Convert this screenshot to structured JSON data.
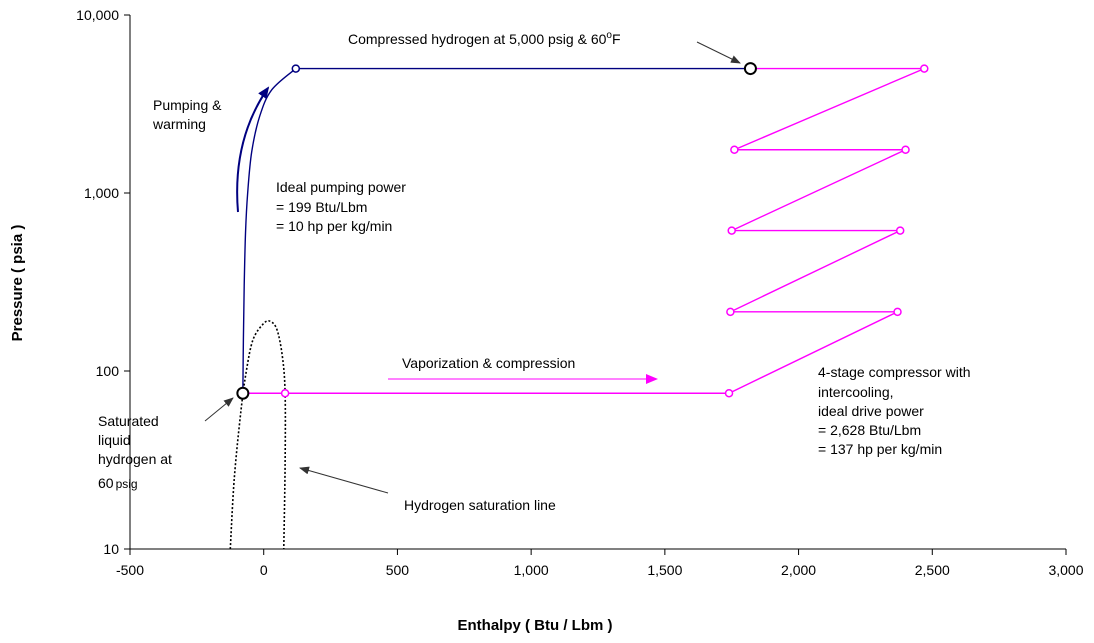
{
  "chart_data": {
    "type": "line",
    "xlabel": "Enthalpy  ( Btu / Lbm )",
    "ylabel": "Pressure  ( psia )",
    "xlim": [
      -500,
      3000
    ],
    "ylim": [
      10,
      10000
    ],
    "yscale": "log",
    "grid": false,
    "x_ticks": [
      -500,
      0,
      500,
      1000,
      1500,
      2000,
      2500,
      3000
    ],
    "x_tick_labels": [
      "-500",
      "0",
      "500",
      "1,000",
      "1,500",
      "2,000",
      "2,500",
      "3,000"
    ],
    "y_ticks": [
      10,
      100,
      1000,
      10000
    ],
    "y_tick_labels": [
      "10",
      "100",
      "1,000",
      "10,000"
    ],
    "colors": {
      "pump": "#000080",
      "compressor": "#ff00ff",
      "saturation": "#000000"
    },
    "series": [
      {
        "id": "pumping",
        "style": "solid",
        "color": "#000080",
        "points": [
          [
            -78,
            75
          ],
          [
            -76,
            150
          ],
          [
            -73,
            300
          ],
          [
            -68,
            600
          ],
          [
            -60,
            1000
          ],
          [
            -45,
            1700
          ],
          [
            -15,
            2700
          ],
          [
            30,
            3800
          ],
          [
            120,
            5000
          ],
          [
            1820,
            5000
          ]
        ]
      },
      {
        "id": "compression",
        "style": "solid",
        "color": "#ff00ff",
        "points": [
          [
            -78,
            75
          ],
          [
            1740,
            75
          ],
          [
            2370,
            215
          ],
          [
            1745,
            215
          ],
          [
            2380,
            615
          ],
          [
            1750,
            615
          ],
          [
            2400,
            1750
          ],
          [
            1760,
            1750
          ],
          [
            2470,
            5000
          ],
          [
            1820,
            5000
          ]
        ]
      },
      {
        "id": "saturation",
        "style": "dotted",
        "color": "#000000",
        "points": [
          [
            -125,
            10
          ],
          [
            -110,
            25
          ],
          [
            -85,
            60
          ],
          [
            -65,
            100
          ],
          [
            -40,
            150
          ],
          [
            0,
            185
          ],
          [
            25,
            190
          ],
          [
            50,
            170
          ],
          [
            70,
            120
          ],
          [
            80,
            75
          ],
          [
            80,
            30
          ],
          [
            75,
            10
          ]
        ]
      }
    ],
    "markers": [
      {
        "id": "sat-liquid-point",
        "x": -78,
        "y": 75,
        "color": "#000000",
        "size": "large"
      },
      {
        "id": "vapor-point",
        "x": 80,
        "y": 75,
        "color": "#ff00ff",
        "size": "small"
      },
      {
        "id": "pump-top-point",
        "x": 120,
        "y": 5000,
        "color": "#000080",
        "size": "small"
      },
      {
        "id": "compressed-h2-point",
        "x": 1820,
        "y": 5000,
        "color": "#000000",
        "size": "large"
      },
      {
        "id": "stage1-in",
        "x": 1740,
        "y": 75,
        "color": "#ff00ff",
        "size": "small"
      },
      {
        "id": "stage1-out",
        "x": 2370,
        "y": 215,
        "color": "#ff00ff",
        "size": "small"
      },
      {
        "id": "stage2-in",
        "x": 1745,
        "y": 215,
        "color": "#ff00ff",
        "size": "small"
      },
      {
        "id": "stage2-out",
        "x": 2380,
        "y": 615,
        "color": "#ff00ff",
        "size": "small"
      },
      {
        "id": "stage3-in",
        "x": 1750,
        "y": 615,
        "color": "#ff00ff",
        "size": "small"
      },
      {
        "id": "stage3-out",
        "x": 2400,
        "y": 1750,
        "color": "#ff00ff",
        "size": "small"
      },
      {
        "id": "stage4-in",
        "x": 1760,
        "y": 1750,
        "color": "#ff00ff",
        "size": "small"
      },
      {
        "id": "stage4-out",
        "x": 2470,
        "y": 5000,
        "color": "#ff00ff",
        "size": "small"
      }
    ],
    "annotations": {
      "compressed_h2": {
        "main": "Compressed hydrogen at 5,000 psig & 60",
        "sup": "o",
        "unit": "F"
      },
      "pumping": [
        "Pumping &",
        "warming"
      ],
      "pump_power": [
        "Ideal pumping power",
        "= 199 Btu/Lbm",
        "= 10 hp per kg/min"
      ],
      "vaporization": "Vaporization & compression",
      "compressor": [
        "4-stage compressor with",
        "intercooling,",
        "ideal drive power",
        "= 2,628 Btu/Lbm",
        "= 137 hp per kg/min"
      ],
      "sat_liquid": [
        "Saturated",
        "liquid",
        "hydrogen at"
      ],
      "sat_liquid_last": {
        "num": "60",
        "unit": "psig"
      },
      "sat_line": "Hydrogen saturation line"
    }
  }
}
